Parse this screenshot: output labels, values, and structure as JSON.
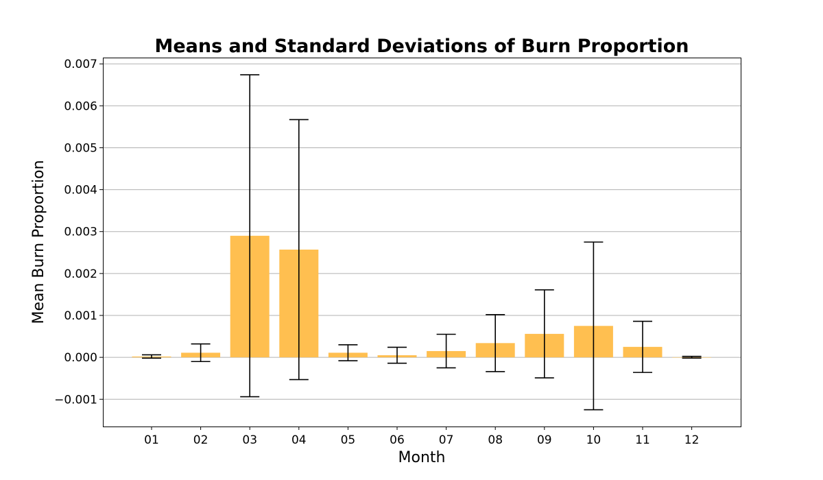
{
  "chart_data": {
    "type": "bar",
    "title": "Means and Standard Deviations of Burn Proportion",
    "xlabel": "Month",
    "ylabel": "Mean Burn Proportion",
    "categories": [
      "01",
      "02",
      "03",
      "04",
      "05",
      "06",
      "07",
      "08",
      "09",
      "10",
      "11",
      "12"
    ],
    "values": [
      2e-05,
      0.00011,
      0.0029,
      0.00257,
      0.00011,
      5e-05,
      0.00015,
      0.00034,
      0.00056,
      0.00075,
      0.00025,
      3e-06
    ],
    "std": [
      4e-05,
      0.00021,
      0.00384,
      0.0031,
      0.00019,
      0.00019,
      0.0004,
      0.00068,
      0.00105,
      0.002,
      0.00061,
      2e-05
    ],
    "bar_color": "#ffbf50",
    "error_color": "#000000",
    "ylim": [
      -0.00165,
      0.00715
    ],
    "yticks": [
      -0.001,
      0.0,
      0.001,
      0.002,
      0.003,
      0.004,
      0.005,
      0.006,
      0.007
    ],
    "ytick_labels": [
      "−0.001",
      "0.000",
      "0.001",
      "0.002",
      "0.003",
      "0.004",
      "0.005",
      "0.006",
      "0.007"
    ],
    "grid": "horizontal",
    "legend": "none"
  }
}
